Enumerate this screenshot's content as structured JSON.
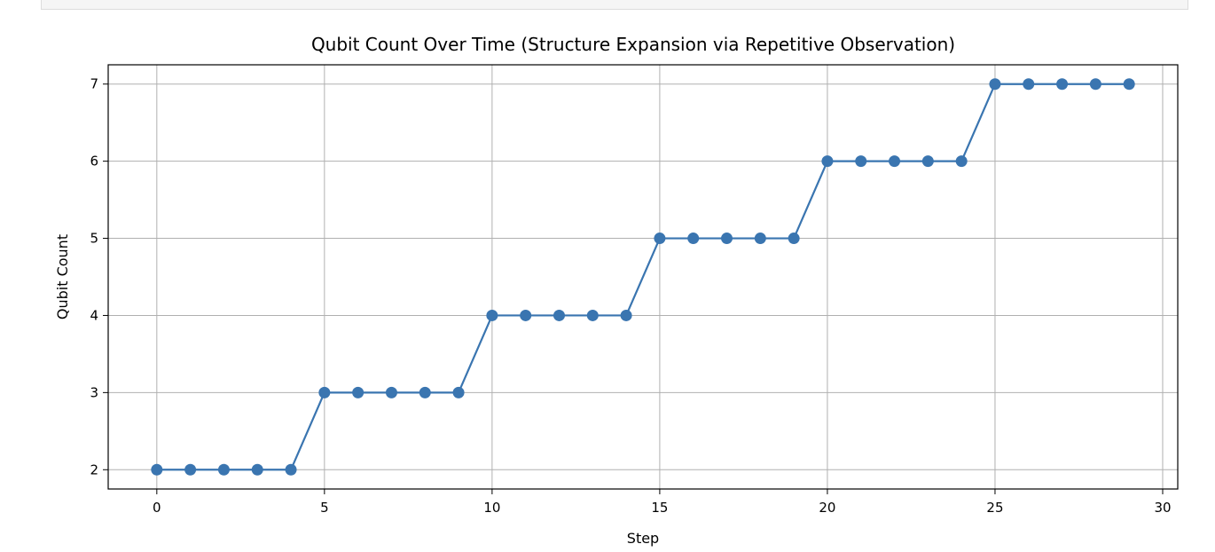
{
  "chart_data": {
    "type": "line",
    "title": "Qubit Count Over Time (Structure Expansion via Repetitive Observation)",
    "xlabel": "Step",
    "ylabel": "Qubit Count",
    "x": [
      0,
      1,
      2,
      3,
      4,
      5,
      6,
      7,
      8,
      9,
      10,
      11,
      12,
      13,
      14,
      15,
      16,
      17,
      18,
      19,
      20,
      21,
      22,
      23,
      24,
      25,
      26,
      27,
      28,
      29
    ],
    "series": [
      {
        "values": [
          2,
          2,
          2,
          2,
          2,
          3,
          3,
          3,
          3,
          3,
          4,
          4,
          4,
          4,
          4,
          5,
          5,
          5,
          5,
          5,
          6,
          6,
          6,
          6,
          6,
          7,
          7,
          7,
          7,
          7
        ],
        "color": "#3a75b0",
        "marker": "circle"
      }
    ],
    "xticks": [
      "0",
      "5",
      "10",
      "15",
      "20",
      "25",
      "30"
    ],
    "yticks": [
      "2",
      "3",
      "4",
      "5",
      "6",
      "7"
    ],
    "xlim": [
      -1.45,
      30.45
    ],
    "ylim": [
      1.75,
      7.25
    ],
    "grid": true
  }
}
